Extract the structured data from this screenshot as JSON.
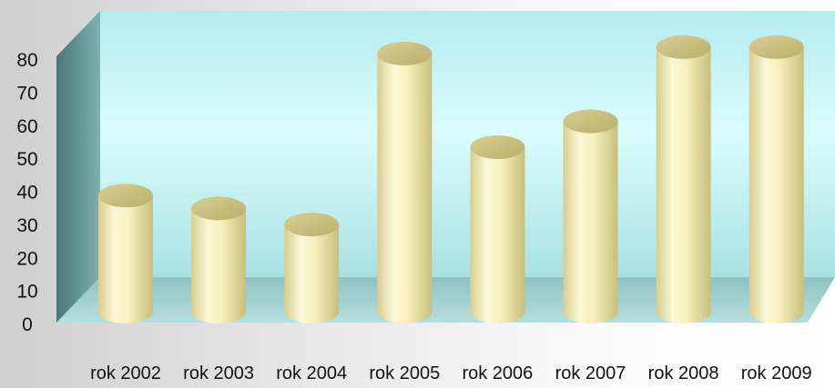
{
  "chart_data": {
    "type": "bar",
    "style": "3d-cylinder",
    "categories": [
      "rok 2002",
      "rok 2003",
      "rok 2004",
      "rok 2005",
      "rok 2006",
      "rok 2007",
      "rok 2008",
      "rok 2009"
    ],
    "values": [
      36,
      32,
      27,
      80,
      51,
      59,
      82,
      82
    ],
    "title": "",
    "xlabel": "",
    "ylabel": "",
    "ylim": [
      0,
      80
    ],
    "yticks": [
      0,
      10,
      20,
      30,
      40,
      50,
      60,
      70,
      80
    ],
    "grid": false,
    "legend": "none",
    "colors": {
      "bar_body": "#f5f0b8",
      "bar_top": "#cfc484",
      "wall_light": "#d8fbfc",
      "wall_dark": "#a6e0e2",
      "floor": "#9fcfcf",
      "side_wall": "#4f7f80"
    }
  }
}
